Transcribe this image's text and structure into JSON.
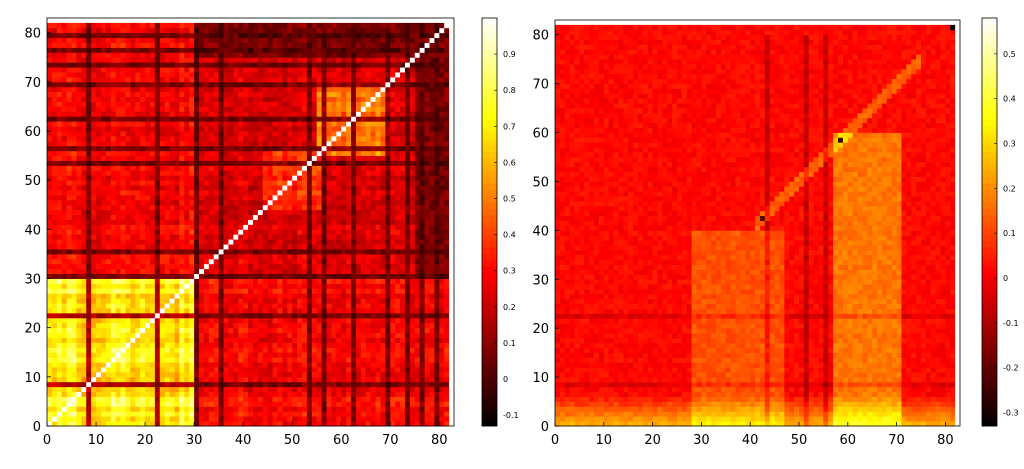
{
  "chart_data": [
    {
      "type": "heatmap",
      "title": "",
      "xlabel": "",
      "ylabel": "",
      "n": 82,
      "xlim": [
        0,
        83
      ],
      "ylim": [
        0,
        83
      ],
      "x_ticks": [
        "0",
        "10",
        "20",
        "30",
        "40",
        "50",
        "60",
        "70",
        "80"
      ],
      "y_ticks": [
        "0",
        "10",
        "20",
        "30",
        "40",
        "50",
        "60",
        "70",
        "80"
      ],
      "colormap": "hot",
      "clim": [
        -0.13,
        1.0
      ],
      "colorbar_ticks": [
        "0.9",
        "0.8",
        "0.7",
        "0.6",
        "0.5",
        "0.4",
        "0.3",
        "0.2",
        "0.1",
        "0",
        "-0.1"
      ],
      "diagonal_value": 1.0,
      "matrix_description": "correlation-like matrix; strongest block (0.7-0.95) for indices 0-30; moderate block 55-70; dark bands (~-0.05) at indices 8, 22, 30, 35, 53, 56, 62, 69, 73, 76, 79"
    },
    {
      "type": "heatmap",
      "title": "",
      "xlabel": "",
      "ylabel": "",
      "n": 82,
      "xlim": [
        0,
        83
      ],
      "ylim": [
        0,
        83
      ],
      "x_ticks": [
        "0",
        "10",
        "20",
        "30",
        "40",
        "50",
        "60",
        "70",
        "80"
      ],
      "y_ticks": [
        "0",
        "10",
        "20",
        "30",
        "40",
        "50",
        "60",
        "70",
        "80"
      ],
      "colormap": "hot",
      "clim": [
        -0.33,
        0.58
      ],
      "colorbar_ticks": [
        "0.5",
        "0.4",
        "0.3",
        "0.2",
        "0.1",
        "0",
        "-0.1",
        "-0.2",
        "-0.3"
      ],
      "matrix_description": "difference matrix mostly near 0 (red); brighter (0.2-0.4) at rows 0-5 and columns 30-45 and 57-70; dark pixels near (82,82), (58,58), (42,42)"
    }
  ]
}
